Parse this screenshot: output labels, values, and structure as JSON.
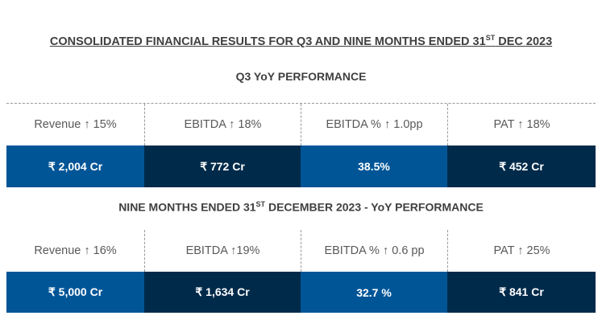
{
  "title": {
    "main": "CONSOLIDATED FINANCIAL RESULTS FOR Q3 AND NINE MONTHS ENDED 31",
    "sup": "ST",
    "tail": " DEC 2023"
  },
  "colors": {
    "blue": "#005597",
    "navy": "#002a4a"
  },
  "q3": {
    "heading": "Q3 YoY PERFORMANCE",
    "labels": [
      "Revenue ↑ 15%",
      "EBITDA ↑ 18%",
      "EBITDA % ↑ 1.0pp",
      "PAT ↑ 18%"
    ],
    "values": [
      "₹ 2,004 Cr",
      "₹ 772 Cr",
      "38.5%",
      "₹ 452 Cr"
    ]
  },
  "nine_months": {
    "heading_pre": "NINE MONTHS ENDED 31",
    "heading_sup": "ST",
    "heading_post": " DECEMBER 2023 - YoY PERFORMANCE",
    "labels": [
      "Revenue ↑ 16%",
      "EBITDA ↑19%",
      "EBITDA % ↑ 0.6 pp",
      "PAT ↑ 25%"
    ],
    "values": [
      "₹ 5,000 Cr",
      "₹ 1,634 Cr",
      "32.7 %",
      "₹ 841 Cr"
    ]
  }
}
